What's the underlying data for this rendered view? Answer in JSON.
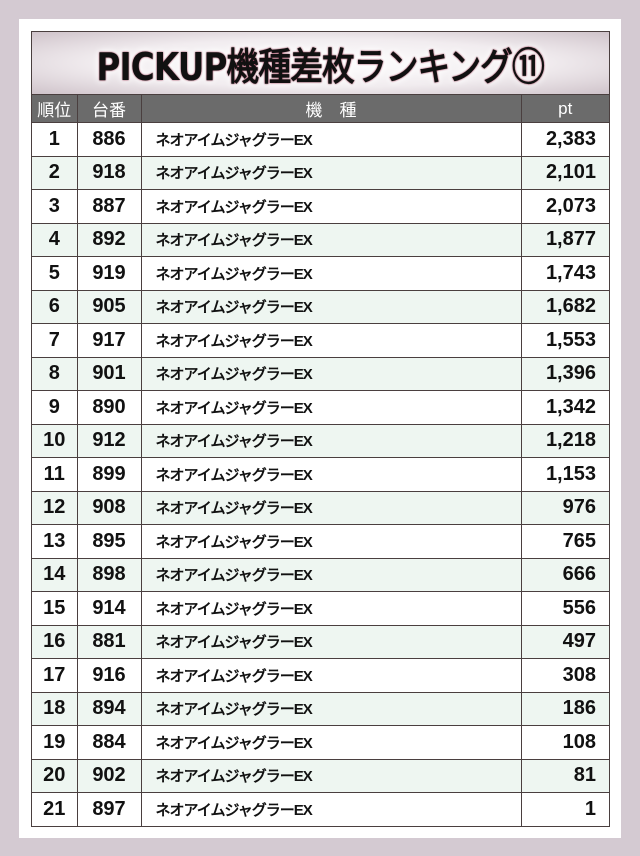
{
  "title": "PICKUP機種差枚ランキング⑪",
  "headers": {
    "rank": "順位",
    "machine_no": "台番",
    "model": "機　種",
    "pt": "pt"
  },
  "rows": [
    {
      "rank": "1",
      "machine_no": "886",
      "model": "ネオアイムジャグラーEX",
      "pt": "2,383"
    },
    {
      "rank": "2",
      "machine_no": "918",
      "model": "ネオアイムジャグラーEX",
      "pt": "2,101"
    },
    {
      "rank": "3",
      "machine_no": "887",
      "model": "ネオアイムジャグラーEX",
      "pt": "2,073"
    },
    {
      "rank": "4",
      "machine_no": "892",
      "model": "ネオアイムジャグラーEX",
      "pt": "1,877"
    },
    {
      "rank": "5",
      "machine_no": "919",
      "model": "ネオアイムジャグラーEX",
      "pt": "1,743"
    },
    {
      "rank": "6",
      "machine_no": "905",
      "model": "ネオアイムジャグラーEX",
      "pt": "1,682"
    },
    {
      "rank": "7",
      "machine_no": "917",
      "model": "ネオアイムジャグラーEX",
      "pt": "1,553"
    },
    {
      "rank": "8",
      "machine_no": "901",
      "model": "ネオアイムジャグラーEX",
      "pt": "1,396"
    },
    {
      "rank": "9",
      "machine_no": "890",
      "model": "ネオアイムジャグラーEX",
      "pt": "1,342"
    },
    {
      "rank": "10",
      "machine_no": "912",
      "model": "ネオアイムジャグラーEX",
      "pt": "1,218"
    },
    {
      "rank": "11",
      "machine_no": "899",
      "model": "ネオアイムジャグラーEX",
      "pt": "1,153"
    },
    {
      "rank": "12",
      "machine_no": "908",
      "model": "ネオアイムジャグラーEX",
      "pt": "976"
    },
    {
      "rank": "13",
      "machine_no": "895",
      "model": "ネオアイムジャグラーEX",
      "pt": "765"
    },
    {
      "rank": "14",
      "machine_no": "898",
      "model": "ネオアイムジャグラーEX",
      "pt": "666"
    },
    {
      "rank": "15",
      "machine_no": "914",
      "model": "ネオアイムジャグラーEX",
      "pt": "556"
    },
    {
      "rank": "16",
      "machine_no": "881",
      "model": "ネオアイムジャグラーEX",
      "pt": "497"
    },
    {
      "rank": "17",
      "machine_no": "916",
      "model": "ネオアイムジャグラーEX",
      "pt": "308"
    },
    {
      "rank": "18",
      "machine_no": "894",
      "model": "ネオアイムジャグラーEX",
      "pt": "186"
    },
    {
      "rank": "19",
      "machine_no": "884",
      "model": "ネオアイムジャグラーEX",
      "pt": "108"
    },
    {
      "rank": "20",
      "machine_no": "902",
      "model": "ネオアイムジャグラーEX",
      "pt": "81"
    },
    {
      "rank": "21",
      "machine_no": "897",
      "model": "ネオアイムジャグラーEX",
      "pt": "1"
    }
  ]
}
